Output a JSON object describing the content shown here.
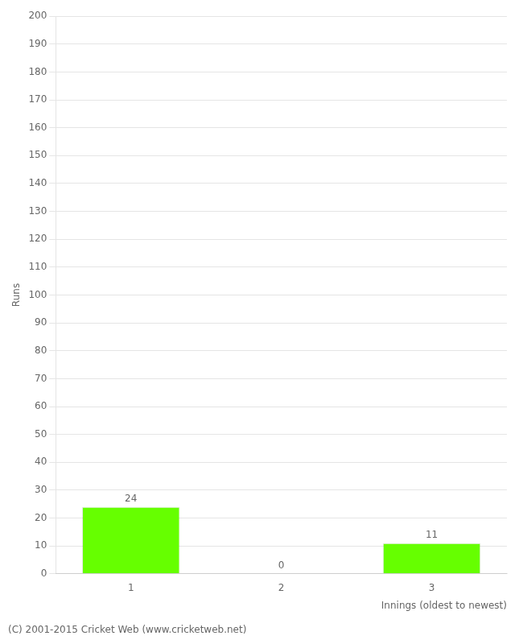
{
  "chart_data": {
    "type": "bar",
    "categories": [
      "1",
      "2",
      "3"
    ],
    "values": [
      24,
      0,
      11
    ],
    "color": "#66ff00",
    "xlabel": "Innings (oldest to newest)",
    "ylabel": "Runs",
    "ylim": [
      0,
      200
    ],
    "yticks": [
      0,
      10,
      20,
      30,
      40,
      50,
      60,
      70,
      80,
      90,
      100,
      110,
      120,
      130,
      140,
      150,
      160,
      170,
      180,
      190,
      200
    ],
    "grid": true,
    "data_labels": true,
    "annotations": [
      "(C) 2001-2015 Cricket Web (www.cricketweb.net)"
    ]
  }
}
